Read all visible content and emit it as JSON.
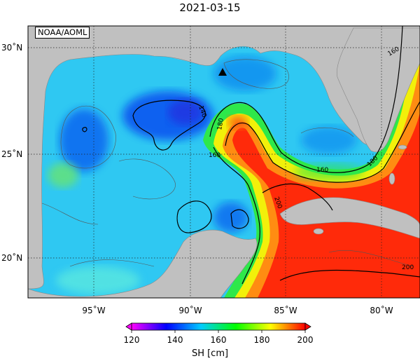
{
  "title": "2021-03-15",
  "credit": "NOAA/AOML",
  "map": {
    "lon_range": [
      -98,
      -78
    ],
    "lat_range": [
      18,
      31
    ],
    "lon_ticks": [
      {
        "value": -95,
        "label": "95˚W"
      },
      {
        "value": -90,
        "label": "90˚W"
      },
      {
        "value": -85,
        "label": "85˚W"
      },
      {
        "value": -80,
        "label": "80˚W"
      }
    ],
    "lat_ticks": [
      {
        "value": 30,
        "label": "30˚N"
      },
      {
        "value": 25,
        "label": "25˚N"
      },
      {
        "value": 20,
        "label": "20˚N"
      }
    ],
    "grid": "dotted",
    "contour_labels": [
      "140",
      "160",
      "180",
      "200"
    ],
    "marker": {
      "type": "triangle",
      "lon": -88.5,
      "lat": 28.7
    }
  },
  "colorbar": {
    "label": "SH [cm]",
    "ticks": [
      "120",
      "140",
      "160",
      "180",
      "200"
    ],
    "min": 120,
    "max": 200,
    "colors": [
      "#ff00ff",
      "#0000ff",
      "#00ccff",
      "#00ff00",
      "#ffff00",
      "#ff0000"
    ]
  },
  "colors": {
    "land": "#c0c0c0",
    "blue": "#0a6cf0",
    "cyan": "#2fc8f2",
    "green": "#2ee84a",
    "yellow": "#f2f00a",
    "orange": "#ff8c12",
    "red": "#ff2a0a"
  }
}
